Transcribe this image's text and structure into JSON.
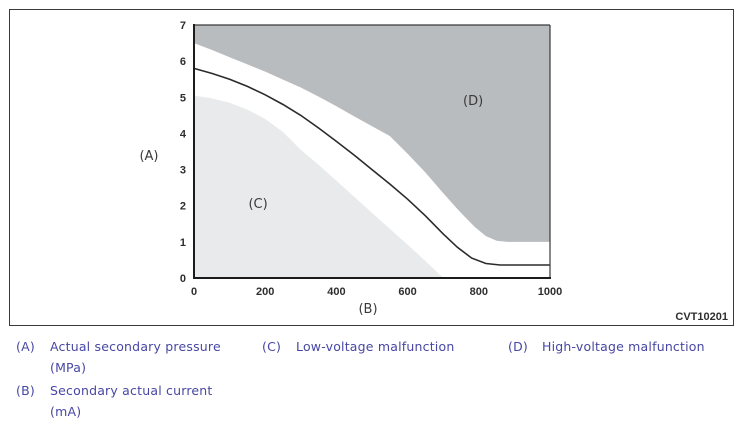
{
  "figure_code": "CVT10201",
  "colors": {
    "legend_text": "#4747a3",
    "region_low_voltage": "#e8eaeb",
    "region_high_voltage": "#b9bcbe",
    "curve": "#2b2b2b",
    "chart_text": "#3a3a3a"
  },
  "chart_data": {
    "type": "area",
    "title": "",
    "xlabel": "(B)",
    "ylabel": "(A)",
    "xlabel_meaning": "Secondary actual current (mA)",
    "ylabel_meaning": "Actual secondary pressure (MPa)",
    "xlim": [
      0,
      1000
    ],
    "ylim": [
      0,
      7
    ],
    "x_ticks": [
      0,
      200,
      400,
      600,
      800,
      1000
    ],
    "y_ticks": [
      0,
      1,
      2,
      3,
      4,
      5,
      6,
      7
    ],
    "grid": false,
    "regions": {
      "low_voltage": {
        "label": "(C)",
        "meaning": "Low-voltage malfunction",
        "fill": "#e8eaeb",
        "boundary": [
          [
            0,
            5.05
          ],
          [
            50,
            4.97
          ],
          [
            100,
            4.85
          ],
          [
            150,
            4.66
          ],
          [
            200,
            4.4
          ],
          [
            250,
            4.04
          ],
          [
            300,
            3.55
          ],
          [
            350,
            3.13
          ],
          [
            400,
            2.69
          ],
          [
            450,
            2.25
          ],
          [
            500,
            1.8
          ],
          [
            550,
            1.36
          ],
          [
            600,
            0.92
          ],
          [
            650,
            0.47
          ],
          [
            700,
            0
          ]
        ]
      },
      "high_voltage": {
        "label": "(D)",
        "meaning": "High-voltage malfunction",
        "fill": "#b9bcbe",
        "boundary": [
          [
            0,
            6.5
          ],
          [
            50,
            6.31
          ],
          [
            100,
            6.11
          ],
          [
            150,
            5.91
          ],
          [
            200,
            5.71
          ],
          [
            250,
            5.49
          ],
          [
            300,
            5.27
          ],
          [
            350,
            5.02
          ],
          [
            400,
            4.75
          ],
          [
            450,
            4.47
          ],
          [
            500,
            4.2
          ],
          [
            550,
            3.93
          ],
          [
            600,
            3.44
          ],
          [
            650,
            2.92
          ],
          [
            700,
            2.35
          ],
          [
            736,
            1.95
          ],
          [
            760,
            1.7
          ],
          [
            790,
            1.4
          ],
          [
            820,
            1.16
          ],
          [
            850,
            1.03
          ],
          [
            880,
            1.0
          ],
          [
            1000,
            1.0
          ]
        ]
      }
    },
    "series": [
      {
        "name": "standard-pressure-curve",
        "stroke": "#2b2b2b",
        "points": [
          [
            0,
            5.8
          ],
          [
            50,
            5.66
          ],
          [
            100,
            5.5
          ],
          [
            150,
            5.3
          ],
          [
            200,
            5.07
          ],
          [
            250,
            4.8
          ],
          [
            300,
            4.5
          ],
          [
            350,
            4.15
          ],
          [
            400,
            3.78
          ],
          [
            450,
            3.4
          ],
          [
            500,
            3.0
          ],
          [
            550,
            2.6
          ],
          [
            600,
            2.18
          ],
          [
            650,
            1.72
          ],
          [
            700,
            1.22
          ],
          [
            740,
            0.85
          ],
          [
            780,
            0.55
          ],
          [
            820,
            0.4
          ],
          [
            860,
            0.36
          ],
          [
            1000,
            0.36
          ]
        ]
      }
    ],
    "annotations": [
      {
        "text": "(C)",
        "x": 180,
        "y": 2.05
      },
      {
        "text": "(D)",
        "x": 784,
        "y": 4.9
      }
    ]
  },
  "legend": {
    "items": [
      {
        "key": "(A)",
        "label": "Actual secondary pressure",
        "unit": "(MPa)"
      },
      {
        "key": "(B)",
        "label": "Secondary actual current",
        "unit": "(mA)"
      },
      {
        "key": "(C)",
        "label": "Low-voltage malfunction",
        "unit": ""
      },
      {
        "key": "(D)",
        "label": "High-voltage malfunction",
        "unit": ""
      }
    ]
  }
}
